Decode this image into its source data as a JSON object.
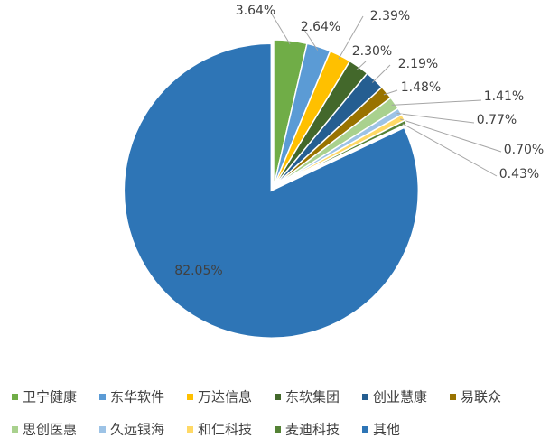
{
  "chart_data": {
    "type": "pie",
    "categories": [
      "卫宁健康",
      "东华软件",
      "万达信息",
      "东软集团",
      "创业慧康",
      "易联众",
      "思创医惠",
      "久远银海",
      "和仁科技",
      "麦迪科技",
      "其他"
    ],
    "values": [
      3.64,
      2.64,
      2.39,
      2.3,
      2.19,
      1.48,
      1.41,
      0.77,
      0.7,
      0.43,
      82.05
    ],
    "value_labels": [
      "3.64%",
      "2.64%",
      "2.39%",
      "2.30%",
      "2.19%",
      "1.48%",
      "1.41%",
      "0.77%",
      "0.70%",
      "0.43%",
      "82.05%"
    ],
    "colors": [
      "#70ad47",
      "#5b9bd5",
      "#ffc000",
      "#43682b",
      "#255e91",
      "#997300",
      "#a9d18e",
      "#9dc3e6",
      "#ffd966",
      "#548235",
      "#2e75b6"
    ],
    "legend": "bottom"
  }
}
